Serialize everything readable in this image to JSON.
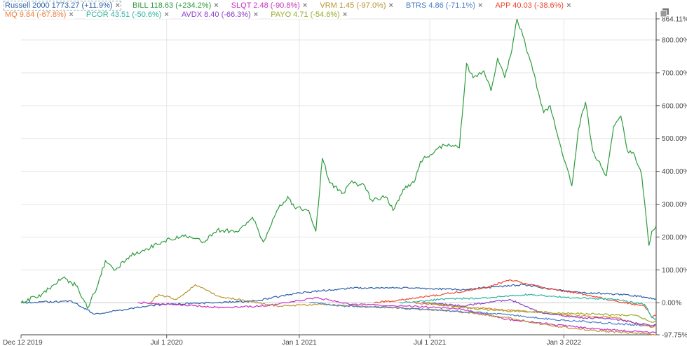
{
  "legend": [
    {
      "label": "Russell 2000 1773.27 (+11.9%)",
      "color": "#2b5fa8",
      "selected": true
    },
    {
      "label": "BILL 118.63 (+234.2%)",
      "color": "#2f9c3f"
    },
    {
      "label": "SLQT 2.48 (-90.8%)",
      "color": "#c931c4"
    },
    {
      "label": "VRM 1.45 (-97.0%)",
      "color": "#b99430"
    },
    {
      "label": "BTRS 4.86 (-71.1%)",
      "color": "#4a7fc9"
    },
    {
      "label": "APP 40.03 (-38.6%)",
      "color": "#f2452c"
    },
    {
      "label": "MQ 9.84 (-67.8%)",
      "color": "#f27b36"
    },
    {
      "label": "PCOR 43.51 (-50.6%)",
      "color": "#2bb59f"
    },
    {
      "label": "AVDX 8.40 (-66.3%)",
      "color": "#8a3fca"
    },
    {
      "label": "PAYO 4.71 (-54.6%)",
      "color": "#9bab2b"
    }
  ],
  "legend_close_glyph": "×",
  "chart_data": {
    "type": "line",
    "y_unit": "%",
    "ylim": [
      -97.75,
      864.11
    ],
    "y_ticks": [
      "864.11%",
      "800.00%",
      "700.00%",
      "600.00%",
      "500.00%",
      "400.00%",
      "300.00%",
      "200.00%",
      "100.00%",
      "0.00%",
      "-97.75%"
    ],
    "x_ticks": [
      {
        "date": "2019-12-12",
        "label": "Dec 12 2019"
      },
      {
        "date": "2020-07-01",
        "label": "Jul 1 2020"
      },
      {
        "date": "2021-01-01",
        "label": "Jan 1 2021"
      },
      {
        "date": "2021-07-01",
        "label": "Jul 1 2021"
      },
      {
        "date": "2022-01-03",
        "label": "Jan 3 2022"
      }
    ],
    "xlim": [
      "2019-12-12",
      "2022-05-11"
    ],
    "grid": true,
    "y_axis_position": "right",
    "series": [
      {
        "name": "Russell 2000",
        "color": "#2b5fa8",
        "points": [
          [
            "2019-12-12",
            0
          ],
          [
            "2020-02-20",
            5
          ],
          [
            "2020-03-23",
            -35
          ],
          [
            "2020-06-08",
            -8
          ],
          [
            "2020-09-01",
            0
          ],
          [
            "2020-11-01",
            5
          ],
          [
            "2020-12-31",
            30
          ],
          [
            "2021-03-15",
            45
          ],
          [
            "2021-06-01",
            45
          ],
          [
            "2021-08-15",
            40
          ],
          [
            "2021-11-08",
            55
          ],
          [
            "2021-12-20",
            40
          ],
          [
            "2022-01-27",
            30
          ],
          [
            "2022-03-29",
            25
          ],
          [
            "2022-05-11",
            12
          ]
        ]
      },
      {
        "name": "BILL",
        "color": "#2f9c3f",
        "points": [
          [
            "2019-12-12",
            0
          ],
          [
            "2020-01-10",
            26
          ],
          [
            "2020-02-08",
            75
          ],
          [
            "2020-02-28",
            51
          ],
          [
            "2020-03-13",
            -17
          ],
          [
            "2020-03-28",
            57
          ],
          [
            "2020-04-07",
            128
          ],
          [
            "2020-04-21",
            100
          ],
          [
            "2020-05-11",
            143
          ],
          [
            "2020-06-04",
            164
          ],
          [
            "2020-06-24",
            185
          ],
          [
            "2020-07-23",
            206
          ],
          [
            "2020-08-21",
            185
          ],
          [
            "2020-09-09",
            221
          ],
          [
            "2020-10-09",
            217
          ],
          [
            "2020-10-28",
            260
          ],
          [
            "2020-11-12",
            185
          ],
          [
            "2020-12-01",
            281
          ],
          [
            "2020-12-16",
            323
          ],
          [
            "2020-12-25",
            291
          ],
          [
            "2021-01-14",
            281
          ],
          [
            "2021-01-24",
            217
          ],
          [
            "2021-02-02",
            440
          ],
          [
            "2021-02-12",
            366
          ],
          [
            "2021-03-03",
            334
          ],
          [
            "2021-03-13",
            366
          ],
          [
            "2021-04-02",
            355
          ],
          [
            "2021-04-11",
            313
          ],
          [
            "2021-05-01",
            323
          ],
          [
            "2021-05-11",
            281
          ],
          [
            "2021-05-25",
            345
          ],
          [
            "2021-06-09",
            366
          ],
          [
            "2021-06-18",
            430
          ],
          [
            "2021-07-13",
            472
          ],
          [
            "2021-07-27",
            483
          ],
          [
            "2021-08-11",
            472
          ],
          [
            "2021-08-21",
            728
          ],
          [
            "2021-08-30",
            685
          ],
          [
            "2021-09-14",
            706
          ],
          [
            "2021-09-24",
            645
          ],
          [
            "2021-10-03",
            745
          ],
          [
            "2021-10-13",
            685
          ],
          [
            "2021-10-23",
            770
          ],
          [
            "2021-10-30",
            864
          ],
          [
            "2021-11-07",
            813
          ],
          [
            "2021-11-21",
            706
          ],
          [
            "2021-12-06",
            579
          ],
          [
            "2021-12-15",
            600
          ],
          [
            "2021-12-30",
            472
          ],
          [
            "2022-01-14",
            355
          ],
          [
            "2022-01-23",
            526
          ],
          [
            "2022-02-02",
            611
          ],
          [
            "2022-02-12",
            462
          ],
          [
            "2022-03-03",
            387
          ],
          [
            "2022-03-13",
            536
          ],
          [
            "2022-03-23",
            568
          ],
          [
            "2022-04-01",
            462
          ],
          [
            "2022-04-11",
            451
          ],
          [
            "2022-04-21",
            387
          ],
          [
            "2022-05-01",
            174
          ],
          [
            "2022-05-05",
            217
          ],
          [
            "2022-05-11",
            234
          ]
        ]
      },
      {
        "name": "SLQT",
        "color": "#c931c4",
        "points": [
          [
            "2020-05-22",
            0
          ],
          [
            "2020-07-15",
            -5
          ],
          [
            "2020-09-15",
            -15
          ],
          [
            "2020-11-15",
            -10
          ],
          [
            "2021-01-25",
            15
          ],
          [
            "2021-03-15",
            -5
          ],
          [
            "2021-06-01",
            -10
          ],
          [
            "2021-08-15",
            -20
          ],
          [
            "2021-10-15",
            -50
          ],
          [
            "2021-12-15",
            -65
          ],
          [
            "2022-02-15",
            -80
          ],
          [
            "2022-05-11",
            -90.8
          ]
        ]
      },
      {
        "name": "VRM",
        "color": "#b99430",
        "points": [
          [
            "2020-06-08",
            0
          ],
          [
            "2020-06-20",
            25
          ],
          [
            "2020-07-15",
            10
          ],
          [
            "2020-08-10",
            55
          ],
          [
            "2020-09-10",
            20
          ],
          [
            "2020-10-20",
            5
          ],
          [
            "2020-12-01",
            -10
          ],
          [
            "2021-02-01",
            -5
          ],
          [
            "2021-05-01",
            -15
          ],
          [
            "2021-08-01",
            -25
          ],
          [
            "2021-10-15",
            -45
          ],
          [
            "2021-12-15",
            -70
          ],
          [
            "2022-02-15",
            -85
          ],
          [
            "2022-05-11",
            -97
          ]
        ]
      },
      {
        "name": "BTRS",
        "color": "#4a7fc9",
        "points": [
          [
            "2021-01-15",
            0
          ],
          [
            "2021-03-01",
            -10
          ],
          [
            "2021-05-15",
            -15
          ],
          [
            "2021-08-01",
            -25
          ],
          [
            "2021-10-15",
            -35
          ],
          [
            "2021-12-15",
            -50
          ],
          [
            "2022-02-15",
            -60
          ],
          [
            "2022-05-11",
            -71.1
          ]
        ]
      },
      {
        "name": "APP",
        "color": "#f2452c",
        "points": [
          [
            "2021-04-15",
            0
          ],
          [
            "2021-06-01",
            10
          ],
          [
            "2021-08-01",
            30
          ],
          [
            "2021-09-15",
            45
          ],
          [
            "2021-10-20",
            70
          ],
          [
            "2021-11-15",
            55
          ],
          [
            "2021-12-20",
            40
          ],
          [
            "2022-01-20",
            30
          ],
          [
            "2022-03-15",
            5
          ],
          [
            "2022-04-25",
            -10
          ],
          [
            "2022-05-05",
            -45
          ],
          [
            "2022-05-11",
            -38.6
          ]
        ]
      },
      {
        "name": "MQ",
        "color": "#f27b36",
        "points": [
          [
            "2021-06-09",
            0
          ],
          [
            "2021-08-01",
            -10
          ],
          [
            "2021-10-01",
            -20
          ],
          [
            "2021-12-01",
            -30
          ],
          [
            "2022-01-20",
            -40
          ],
          [
            "2022-03-15",
            -45
          ],
          [
            "2022-05-05",
            -75
          ],
          [
            "2022-05-11",
            -67.8
          ]
        ]
      },
      {
        "name": "PCOR",
        "color": "#2bb59f",
        "points": [
          [
            "2021-05-20",
            0
          ],
          [
            "2021-07-15",
            10
          ],
          [
            "2021-09-15",
            15
          ],
          [
            "2021-11-15",
            25
          ],
          [
            "2022-01-15",
            15
          ],
          [
            "2022-03-15",
            10
          ],
          [
            "2022-04-25",
            -5
          ],
          [
            "2022-05-05",
            -45
          ],
          [
            "2022-05-11",
            -50.6
          ]
        ]
      },
      {
        "name": "AVDX",
        "color": "#8a3fca",
        "points": [
          [
            "2021-06-20",
            0
          ],
          [
            "2021-08-15",
            -10
          ],
          [
            "2021-10-20",
            10
          ],
          [
            "2021-12-01",
            -30
          ],
          [
            "2022-01-20",
            -45
          ],
          [
            "2022-03-15",
            -50
          ],
          [
            "2022-05-05",
            -70
          ],
          [
            "2022-05-11",
            -66.3
          ]
        ]
      },
      {
        "name": "PAYO",
        "color": "#9bab2b",
        "points": [
          [
            "2021-06-25",
            0
          ],
          [
            "2021-08-15",
            -15
          ],
          [
            "2021-10-15",
            -25
          ],
          [
            "2021-12-15",
            -30
          ],
          [
            "2022-02-15",
            -35
          ],
          [
            "2022-04-15",
            -40
          ],
          [
            "2022-05-05",
            -60
          ],
          [
            "2022-05-11",
            -54.6
          ]
        ]
      }
    ]
  }
}
